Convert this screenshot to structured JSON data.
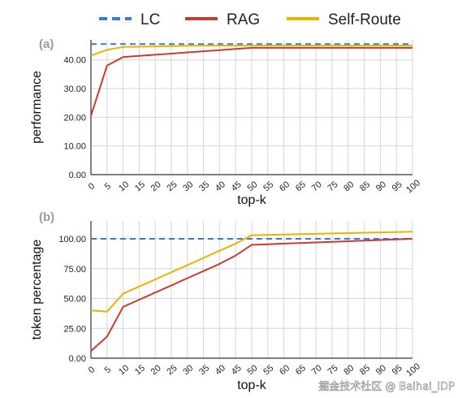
{
  "colors": {
    "LC": "#3a7bd5",
    "RAG": "#cc3b2f",
    "Self-Route": "#e8b400",
    "grid": "#d6d6d6",
    "axis": "#333333"
  },
  "legend": [
    {
      "name": "LC",
      "style": "dashed"
    },
    {
      "name": "RAG",
      "style": "solid"
    },
    {
      "name": "Self-Route",
      "style": "solid"
    }
  ],
  "watermark": "掘金技术社区 @ Baihai_IDP",
  "chart_data": [
    {
      "type": "line",
      "panel_label": "(a)",
      "xlabel": "top-k",
      "ylabel": "performance",
      "x": [
        0,
        5,
        10,
        15,
        20,
        25,
        30,
        35,
        40,
        45,
        50,
        55,
        60,
        65,
        70,
        75,
        80,
        85,
        90,
        95,
        100
      ],
      "xlim": [
        0,
        100
      ],
      "ylim": [
        0,
        47
      ],
      "yticks": [
        0,
        10,
        20,
        30,
        40
      ],
      "ytick_labels": [
        "0.00",
        "10.00",
        "20.00",
        "30.00",
        "40.00"
      ],
      "xtick_labels": [
        "0",
        "5",
        "10",
        "15",
        "20",
        "25",
        "30",
        "35",
        "40",
        "45",
        "50",
        "55",
        "60",
        "65",
        "70",
        "75",
        "80",
        "85",
        "90",
        "95",
        "100"
      ],
      "grid": true,
      "series": [
        {
          "name": "LC",
          "values": [
            45.5,
            45.5,
            45.5,
            45.5,
            45.5,
            45.5,
            45.5,
            45.5,
            45.5,
            45.5,
            45.5,
            45.5,
            45.5,
            45.5,
            45.5,
            45.5,
            45.5,
            45.5,
            45.5,
            45.5,
            45.5
          ]
        },
        {
          "name": "RAG",
          "values": [
            20.5,
            38,
            41,
            41.4,
            41.8,
            42.2,
            42.6,
            43,
            43.4,
            43.8,
            44.2,
            44.2,
            44.2,
            44.2,
            44.2,
            44.2,
            44.2,
            44.2,
            44.2,
            44.2,
            44.2
          ]
        },
        {
          "name": "Self-Route",
          "values": [
            41.5,
            43.5,
            44.5,
            44.6,
            44.7,
            44.8,
            44.9,
            45,
            45,
            45,
            45,
            45,
            45,
            45,
            45,
            45,
            45,
            45,
            45,
            45,
            45
          ]
        }
      ]
    },
    {
      "type": "line",
      "panel_label": "(b)",
      "xlabel": "top-k",
      "ylabel": "token percentage",
      "x": [
        0,
        5,
        10,
        15,
        20,
        25,
        30,
        35,
        40,
        45,
        50,
        55,
        60,
        65,
        70,
        75,
        80,
        85,
        90,
        95,
        100
      ],
      "xlim": [
        0,
        100
      ],
      "ylim": [
        0,
        115
      ],
      "yticks": [
        0,
        25,
        50,
        75,
        100
      ],
      "ytick_labels": [
        "0.00",
        "25.00",
        "50.00",
        "75.00",
        "100.00"
      ],
      "xtick_labels": [
        "0",
        "5",
        "10",
        "15",
        "20",
        "25",
        "30",
        "35",
        "40",
        "45",
        "50",
        "55",
        "60",
        "65",
        "70",
        "75",
        "80",
        "85",
        "90",
        "95",
        "100"
      ],
      "grid": true,
      "series": [
        {
          "name": "LC",
          "values": [
            100,
            100,
            100,
            100,
            100,
            100,
            100,
            100,
            100,
            100,
            100,
            100,
            100,
            100,
            100,
            100,
            100,
            100,
            100,
            100,
            100
          ]
        },
        {
          "name": "RAG",
          "values": [
            6,
            18,
            43,
            49,
            55,
            61,
            67,
            73,
            79,
            86,
            95,
            95.5,
            96,
            96.5,
            97,
            97.5,
            98,
            98.5,
            99,
            99.5,
            100
          ]
        },
        {
          "name": "Self-Route",
          "values": [
            40,
            39,
            54,
            60,
            66,
            72,
            78,
            84,
            90,
            96,
            103,
            103.3,
            103.6,
            103.9,
            104.2,
            104.5,
            104.8,
            105.1,
            105.4,
            105.7,
            106
          ]
        }
      ]
    }
  ]
}
